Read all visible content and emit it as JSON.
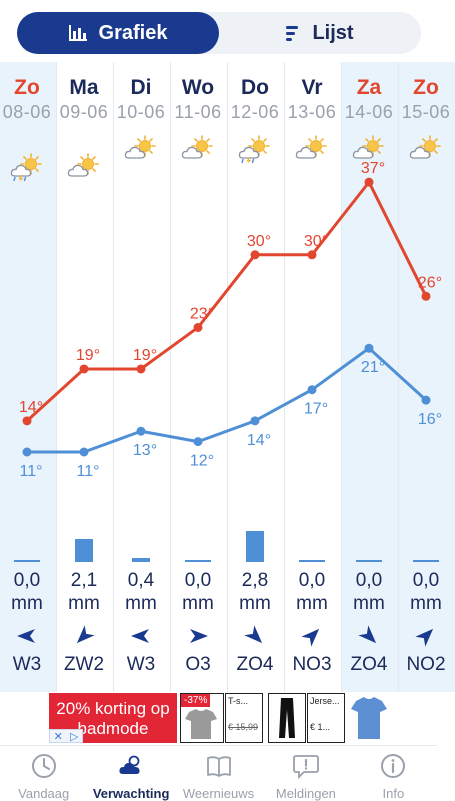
{
  "toggle": {
    "chart_label": "Grafiek",
    "list_label": "Lijst",
    "chart_icon": "bar-chart-icon",
    "list_icon": "list-icon"
  },
  "days": [
    {
      "day": "Zo",
      "date": "08-06",
      "weekend": true,
      "icon": "sun-cloud-thunder-icon",
      "precip_value": "0,0",
      "precip_unit": "mm",
      "precip_mm": 0.0,
      "wind": "W3",
      "wind_dir": "W"
    },
    {
      "day": "Ma",
      "date": "09-06",
      "weekend": false,
      "icon": "sun-cloud-icon",
      "precip_value": "2,1",
      "precip_unit": "mm",
      "precip_mm": 2.1,
      "wind": "ZW2",
      "wind_dir": "ZW"
    },
    {
      "day": "Di",
      "date": "10-06",
      "weekend": false,
      "icon": "sun-cloud-icon",
      "precip_value": "0,4",
      "precip_unit": "mm",
      "precip_mm": 0.4,
      "wind": "W3",
      "wind_dir": "W"
    },
    {
      "day": "Wo",
      "date": "11-06",
      "weekend": false,
      "icon": "sun-cloud-icon",
      "precip_value": "0,0",
      "precip_unit": "mm",
      "precip_mm": 0.0,
      "wind": "O3",
      "wind_dir": "O"
    },
    {
      "day": "Do",
      "date": "12-06",
      "weekend": false,
      "icon": "sun-cloud-thunder-icon",
      "precip_value": "2,8",
      "precip_unit": "mm",
      "precip_mm": 2.8,
      "wind": "ZO4",
      "wind_dir": "ZO"
    },
    {
      "day": "Vr",
      "date": "13-06",
      "weekend": false,
      "icon": "sun-cloud-icon",
      "precip_value": "0,0",
      "precip_unit": "mm",
      "precip_mm": 0.0,
      "wind": "NO3",
      "wind_dir": "NO"
    },
    {
      "day": "Za",
      "date": "14-06",
      "weekend": true,
      "icon": "sun-cloud-icon",
      "precip_value": "0,0",
      "precip_unit": "mm",
      "precip_mm": 0.0,
      "wind": "ZO4",
      "wind_dir": "ZO"
    },
    {
      "day": "Zo",
      "date": "15-06",
      "weekend": true,
      "icon": "sun-cloud-icon",
      "precip_value": "0,0",
      "precip_unit": "mm",
      "precip_mm": 0.0,
      "wind": "NO2",
      "wind_dir": "NO"
    }
  ],
  "chart_data": {
    "type": "line",
    "categories": [
      "Zo 08-06",
      "Ma 09-06",
      "Di 10-06",
      "Wo 11-06",
      "Do 12-06",
      "Vr 13-06",
      "Za 14-06",
      "Zo 15-06"
    ],
    "series": [
      {
        "values": [
          14,
          19,
          19,
          23,
          30,
          30,
          37,
          26
        ],
        "color": "#e2462f"
      },
      {
        "values": [
          11,
          11,
          13,
          12,
          14,
          17,
          21,
          16
        ],
        "color": "#4f8fd6"
      }
    ],
    "unit_suffix": "°"
  },
  "ad": {
    "headline": "20% korting op badmode",
    "badge": "-37%",
    "item1_title": "T-s...",
    "item1_price": "€ 15,99",
    "item3_title": "Jerse...",
    "item3_price": "€ 1...",
    "close_icon": "close-icon",
    "adchoices_icon": "adchoices-icon"
  },
  "nav": {
    "items": [
      {
        "label": "Vandaag",
        "icon": "clock-icon",
        "active": false
      },
      {
        "label": "Verwachting",
        "icon": "weather-cloud-icon",
        "active": true
      },
      {
        "label": "Weernieuws",
        "icon": "book-icon",
        "active": false
      },
      {
        "label": "Meldingen",
        "icon": "alert-bubble-icon",
        "active": false
      },
      {
        "label": "Info",
        "icon": "info-icon",
        "active": false
      }
    ]
  }
}
